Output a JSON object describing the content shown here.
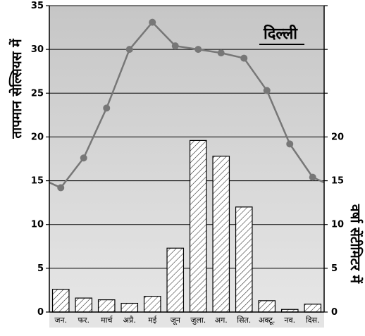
{
  "chart_data": {
    "type": "bar+line",
    "title": "दिल्ली",
    "categories": [
      "जन.",
      "फर.",
      "मार्च",
      "अप्रै.",
      "मई",
      "जून",
      "जुला.",
      "अग.",
      "सित.",
      "अक्टू.",
      "नव.",
      "दिस."
    ],
    "series": [
      {
        "axis": "left",
        "type": "line",
        "color": "#777777",
        "values": [
          14.2,
          17.6,
          23.3,
          30.0,
          33.1,
          30.4,
          30.0,
          29.6,
          29.0,
          25.3,
          19.2,
          15.4
        ]
      },
      {
        "axis": "right",
        "type": "bar",
        "pattern": "diagonal-hatch",
        "values": [
          2.6,
          1.6,
          1.4,
          1.0,
          1.8,
          7.3,
          19.6,
          17.8,
          12.0,
          1.3,
          0.3,
          0.9
        ]
      }
    ],
    "y_left": {
      "label": "तापमान सेल्सियस में",
      "range": [
        0,
        35
      ],
      "ticks": [
        "0",
        "5",
        "10",
        "15",
        "20",
        "25",
        "30",
        "35"
      ]
    },
    "y_right": {
      "label": "वर्षा सेंटीमिटर में",
      "range": [
        0,
        35
      ],
      "ticks": [
        "0",
        "5",
        "10",
        "15",
        "20"
      ]
    },
    "grid": true,
    "background": "#d3d3d3"
  }
}
